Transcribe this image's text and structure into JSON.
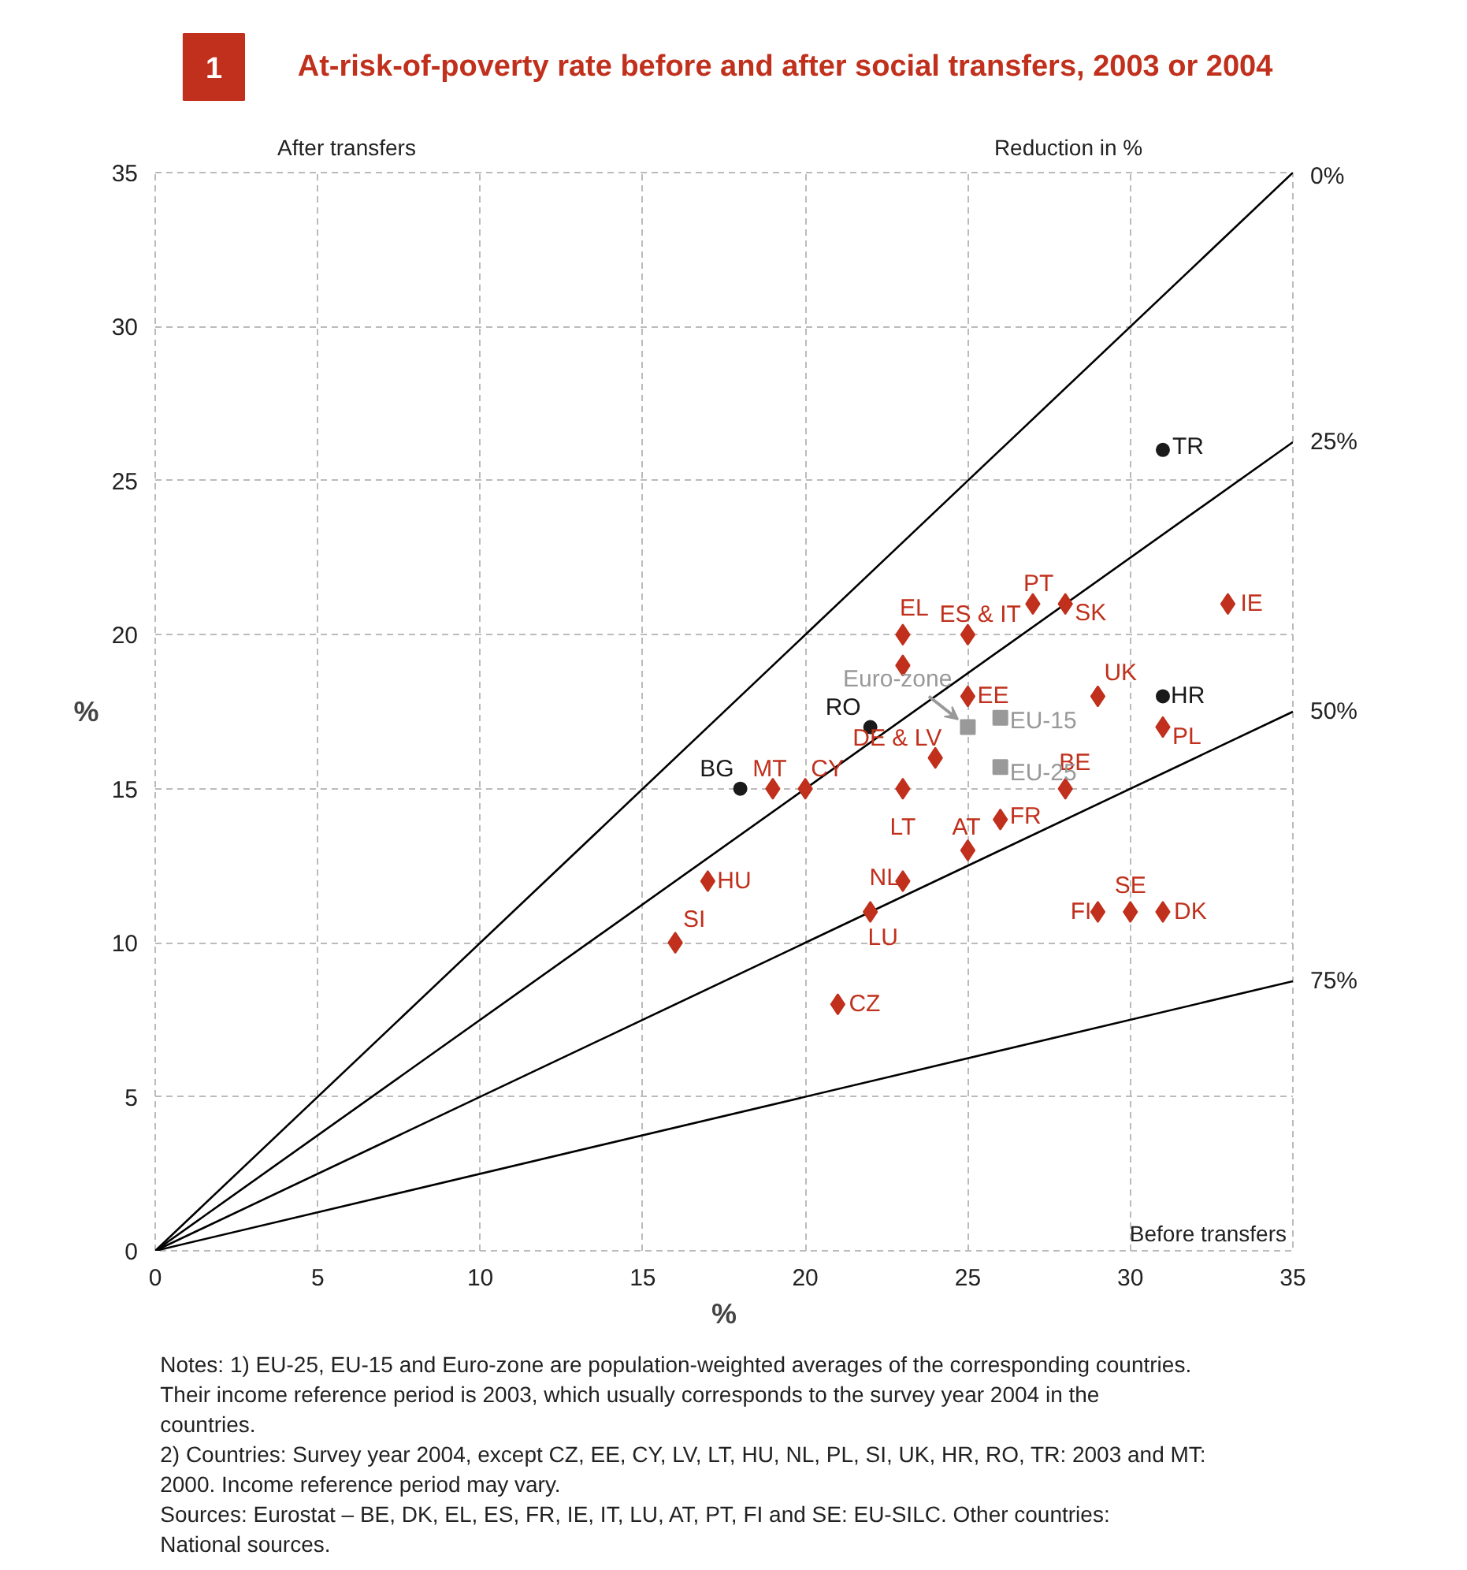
{
  "chart_data": {
    "type": "scatter",
    "title": "At-risk-of-poverty rate before and after social transfers, 2003 or 2004",
    "xlabel": "%",
    "ylabel": "%",
    "xlim": [
      0,
      35
    ],
    "ylim": [
      0,
      35
    ],
    "xticks": [
      0,
      5,
      10,
      15,
      20,
      25,
      30,
      35
    ],
    "yticks": [
      0,
      5,
      10,
      15,
      20,
      25,
      30,
      35
    ],
    "grid": true,
    "series": [
      {
        "name": "0%",
        "type": "line",
        "color": "#000000",
        "x": [
          0,
          35
        ],
        "values": [
          0,
          35
        ]
      },
      {
        "name": "25%",
        "type": "line",
        "color": "#000000",
        "x": [
          0,
          35
        ],
        "values": [
          0,
          26.25
        ]
      },
      {
        "name": "50%",
        "type": "line",
        "color": "#000000",
        "x": [
          0,
          35
        ],
        "values": [
          0,
          17.5
        ]
      },
      {
        "name": "75%",
        "type": "line",
        "color": "#000000",
        "x": [
          0,
          35
        ],
        "values": [
          0,
          8.75
        ]
      },
      {
        "marker": "diamond",
        "color": "#c0301c",
        "x": [
          16,
          17,
          19,
          20,
          23,
          23,
          25,
          27,
          28,
          33,
          25,
          29,
          31,
          24,
          23,
          28,
          26,
          25,
          23,
          22,
          21,
          29,
          30,
          31
        ],
        "values": [
          10,
          12,
          15,
          15,
          20,
          19,
          20,
          21,
          21,
          21,
          18,
          18,
          17,
          16,
          15,
          15,
          14,
          13,
          12,
          11,
          8,
          11,
          11,
          11
        ]
      },
      {
        "marker": "circle",
        "color": "#1a1a1a",
        "x": [
          31,
          31,
          22,
          18
        ],
        "values": [
          26,
          18,
          17,
          15
        ]
      },
      {
        "marker": "square",
        "color": "#999999",
        "x": [
          25,
          26,
          26
        ],
        "values": [
          17,
          17.3,
          15.7
        ]
      }
    ],
    "annotations": [
      "1",
      "After transfers",
      "Before transfers",
      "Reduction in %",
      "Notes: 1) EU-25, EU-15 and Euro-zone are population-weighted averages of the corresponding countries. Their income reference period is 2003, which usually corresponds to the survey year 2004 in the countries.",
      "2) Countries: Survey year 2004, except CZ, EE, CY, LV, LT, HU, NL, PL, SI, UK, HR, RO, TR: 2003 and MT: 2000. Income reference period may vary.",
      "Sources: Eurostat – BE, DK, EL, ES, FR, IE, IT, LU, AT, PT, FI and SE: EU-SILC. Other countries: National sources.",
      {
        "text": "SI",
        "x": 16,
        "y": 10
      },
      {
        "text": "HU",
        "x": 17,
        "y": 12
      },
      {
        "text": "MT",
        "x": 19,
        "y": 15
      },
      {
        "text": "CY",
        "x": 20,
        "y": 15
      },
      {
        "text": "EL",
        "x": 23,
        "y": 20
      },
      {
        "text": "ES & IT",
        "x": 25,
        "y": 20
      },
      {
        "text": "PT",
        "x": 27,
        "y": 21
      },
      {
        "text": "SK",
        "x": 28,
        "y": 21
      },
      {
        "text": "IE",
        "x": 33,
        "y": 21
      },
      {
        "text": "EE",
        "x": 25,
        "y": 18
      },
      {
        "text": "UK",
        "x": 29,
        "y": 18
      },
      {
        "text": "PL",
        "x": 31,
        "y": 17
      },
      {
        "text": "DE & LV",
        "x": 24,
        "y": 16
      },
      {
        "text": "LT",
        "x": 23,
        "y": 15
      },
      {
        "text": "BE",
        "x": 28,
        "y": 15
      },
      {
        "text": "FR",
        "x": 26,
        "y": 14
      },
      {
        "text": "AT",
        "x": 25,
        "y": 13
      },
      {
        "text": "NL",
        "x": 23,
        "y": 12
      },
      {
        "text": "LU",
        "x": 22,
        "y": 11
      },
      {
        "text": "CZ",
        "x": 21,
        "y": 8
      },
      {
        "text": "FI",
        "x": 29,
        "y": 11
      },
      {
        "text": "SE",
        "x": 30,
        "y": 11
      },
      {
        "text": "DK",
        "x": 31,
        "y": 11
      },
      {
        "text": "TR",
        "x": 31,
        "y": 26
      },
      {
        "text": "HR",
        "x": 31,
        "y": 18
      },
      {
        "text": "RO",
        "x": 22,
        "y": 17
      },
      {
        "text": "BG",
        "x": 18,
        "y": 15
      },
      {
        "text": "Euro-zone",
        "x": 25,
        "y": 17
      },
      {
        "text": "EU-15",
        "x": 26,
        "y": 17.3
      },
      {
        "text": "EU-25",
        "x": 26,
        "y": 15.7
      }
    ]
  }
}
